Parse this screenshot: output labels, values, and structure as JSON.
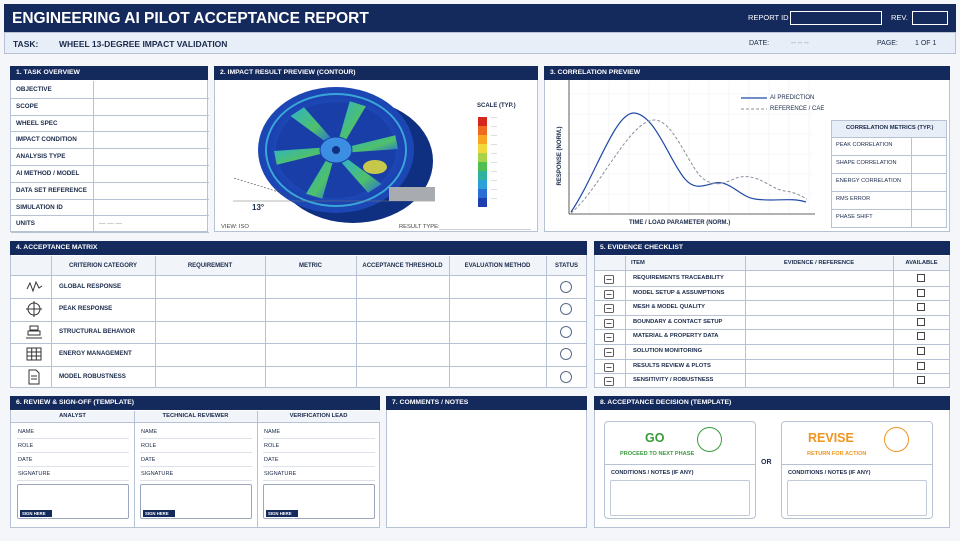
{
  "header": {
    "title": "ENGINEERING AI PILOT ACCEPTANCE REPORT",
    "report_id_label": "REPORT ID",
    "rev_label": "REV.",
    "task_label": "TASK:",
    "task": "WHEEL 13-DEGREE IMPACT VALIDATION",
    "date_label": "DATE:",
    "date": "-- -- --",
    "page_label": "PAGE:",
    "page": "1 OF 1"
  },
  "task_overview": {
    "title": "1. TASK OVERVIEW",
    "fields": [
      "OBJECTIVE",
      "SCOPE",
      "WHEEL SPEC",
      "IMPACT CONDITION",
      "ANALYSIS TYPE",
      "AI METHOD / MODEL",
      "DATA SET REFERENCE",
      "SIMULATION ID"
    ],
    "units": {
      "label": "UNITS",
      "value": "— — —"
    }
  },
  "impact_preview": {
    "title": "2. IMPACT RESULT PREVIEW (CONTOUR)",
    "scale_label": "SCALE (TYP.)",
    "angle": "13°",
    "view": "VIEW: ISO",
    "result_type": "RESULT TYPE:"
  },
  "correlation": {
    "title": "3. CORRELATION PREVIEW",
    "y_label": "RESPONSE (NORM.)",
    "x_label": "TIME / LOAD PARAMETER (NORM.)",
    "legend": [
      "AI PREDICTION",
      "REFERENCE / CAE"
    ],
    "metrics_title": "CORRELATION METRICS (TYP.)",
    "metrics": [
      "PEAK CORRELATION",
      "SHAPE CORRELATION",
      "ENERGY CORRELATION",
      "RMS ERROR",
      "PHASE SHIFT"
    ]
  },
  "acceptance_matrix": {
    "title": "4. ACCEPTANCE MATRIX",
    "columns": [
      "CRITERION CATEGORY",
      "REQUIREMENT",
      "METRIC",
      "ACCEPTANCE THRESHOLD",
      "EVALUATION METHOD",
      "STATUS"
    ],
    "rows": [
      "GLOBAL RESPONSE",
      "PEAK RESPONSE",
      "STRUCTURAL BEHAVIOR",
      "ENERGY MANAGEMENT",
      "MODEL ROBUSTNESS"
    ]
  },
  "evidence_checklist": {
    "title": "5. EVIDENCE CHECKLIST",
    "columns": [
      "ITEM",
      "EVIDENCE / REFERENCE",
      "AVAILABLE"
    ],
    "items": [
      "REQUIREMENTS TRACEABILITY",
      "MODEL SETUP & ASSUMPTIONS",
      "MESH & MODEL QUALITY",
      "BOUNDARY & CONTACT SETUP",
      "MATERIAL & PROPERTY DATA",
      "SOLUTION MONITORING",
      "RESULTS REVIEW & PLOTS",
      "SENSITIVITY / ROBUSTNESS"
    ]
  },
  "review": {
    "title": "6. REVIEW & SIGN-OFF (TEMPLATE)",
    "roles": [
      "ANALYST",
      "TECHNICAL REVIEWER",
      "VERIFICATION LEAD"
    ],
    "fields": [
      "NAME",
      "ROLE",
      "DATE",
      "SIGNATURE"
    ],
    "sign_button": "SIGN HERE"
  },
  "comments": {
    "title": "7. COMMENTS / NOTES"
  },
  "decision": {
    "title": "8. ACCEPTANCE DECISION (TEMPLATE)",
    "go": {
      "label": "GO",
      "sub": "PROCEED TO NEXT PHASE"
    },
    "or": "OR",
    "revise": {
      "label": "REVISE",
      "sub": "RETURN FOR ACTION"
    },
    "conditions_label": "CONDITIONS / NOTES (IF ANY)"
  }
}
